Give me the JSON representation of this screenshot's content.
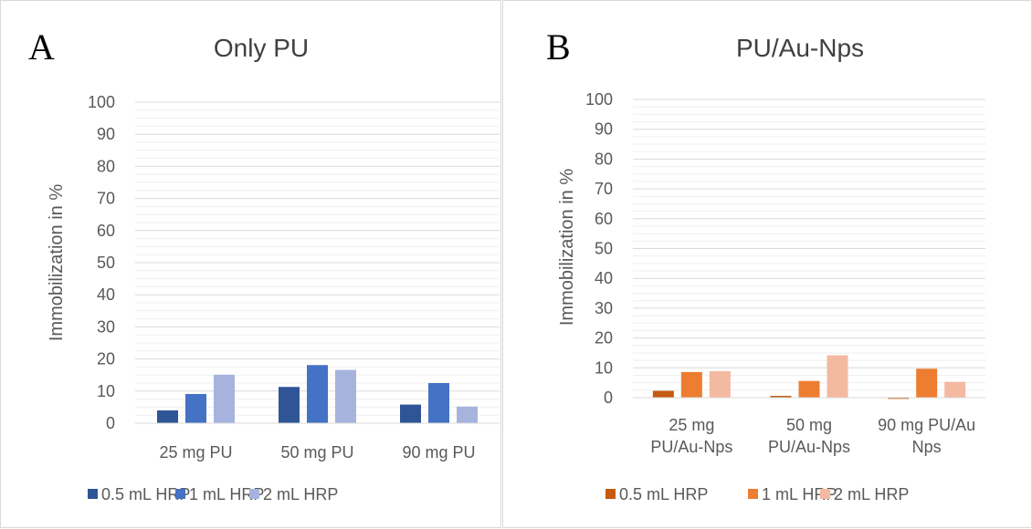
{
  "chart_data": [
    {
      "type": "bar",
      "panel_letter": "A",
      "title": "Only PU",
      "ylabel": "Immobilization in  %",
      "categories": [
        "25 mg PU",
        "50 mg PU",
        "90 mg PU"
      ],
      "series": [
        {
          "name": "0.5 mL HRP",
          "values": [
            4,
            11.3,
            5.8
          ],
          "color": "#2f5597"
        },
        {
          "name": "1 mL HRP",
          "values": [
            9.1,
            18.1,
            12.5
          ],
          "color": "#4472c4"
        },
        {
          "name": "2 mL HRP",
          "values": [
            15.1,
            16.6,
            5.2
          ],
          "color": "#a6b4dd"
        }
      ],
      "ylim": [
        0,
        100
      ],
      "yticks": [
        0,
        10,
        20,
        30,
        40,
        50,
        60,
        70,
        80,
        90,
        100
      ],
      "grid": true,
      "legend": "bottom"
    },
    {
      "type": "bar",
      "panel_letter": "B",
      "title": "PU/Au-Nps",
      "ylabel": "Immobilization in %",
      "categories": [
        [
          "25 mg",
          "PU/Au-Nps"
        ],
        [
          "50 mg",
          "PU/Au-Nps"
        ],
        [
          "90 mg PU/Au",
          "Nps"
        ]
      ],
      "series": [
        {
          "name": "0.5 mL HRP",
          "values": [
            2.3,
            0.6,
            -0.4
          ],
          "color": "#c55a11"
        },
        {
          "name": "1 mL HRP",
          "values": [
            8.6,
            5.6,
            9.7
          ],
          "color": "#ed7d31"
        },
        {
          "name": "2 mL HRP",
          "values": [
            8.9,
            14.2,
            5.3
          ],
          "color": "#f4b9a1"
        }
      ],
      "ylim": [
        0,
        100
      ],
      "yticks": [
        0,
        10,
        20,
        30,
        40,
        50,
        60,
        70,
        80,
        90,
        100
      ],
      "grid": true,
      "legend": "bottom"
    }
  ]
}
